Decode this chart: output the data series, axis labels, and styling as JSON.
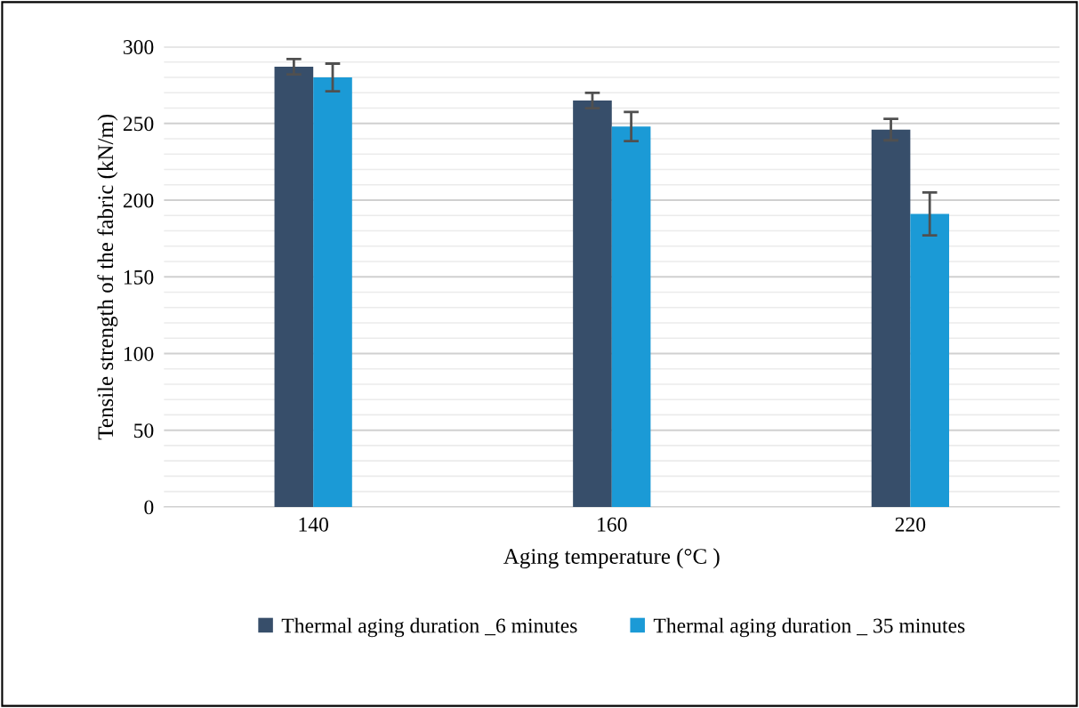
{
  "chart_data": {
    "type": "bar",
    "xlabel": "Aging temperature (°C )",
    "ylabel": "Tensile strength of the fabric (kN/m)",
    "categories": [
      "140",
      "160",
      "220"
    ],
    "series": [
      {
        "name": "Thermal aging duration _6 minutes",
        "color": "#374e6a",
        "values": [
          287,
          265,
          246
        ],
        "errors": [
          5,
          5,
          7
        ]
      },
      {
        "name": "Thermal aging duration _ 35 minutes",
        "color": "#1b9ad6",
        "values": [
          280,
          248,
          191
        ],
        "errors": [
          9,
          9.5,
          14
        ]
      }
    ],
    "ylim": [
      0,
      300
    ],
    "yticks": [
      0,
      50,
      100,
      150,
      200,
      250,
      300
    ],
    "grid": "y",
    "legend": "bottom"
  }
}
